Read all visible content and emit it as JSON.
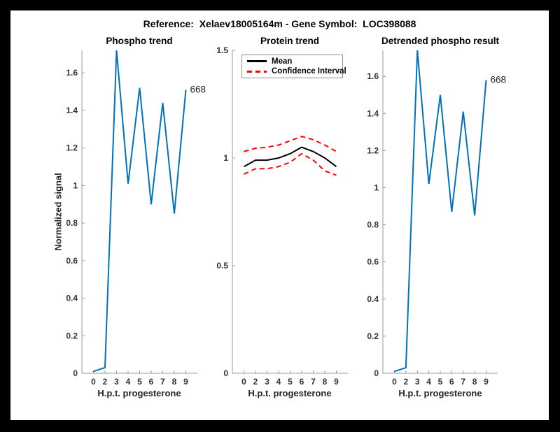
{
  "figure": {
    "title": "Reference:  Xelaev18005164m - Gene Symbol:  LOC398088",
    "background_color": "#ffffff",
    "frame_color": "#000000",
    "accent_blue": "#0072BD"
  },
  "legend": {
    "items": [
      {
        "label": "Mean",
        "color": "#000000",
        "style": "solid"
      },
      {
        "label": "Confidence Interval",
        "color": "#ff0000",
        "style": "dashed"
      }
    ]
  },
  "chart_data": [
    {
      "type": "line",
      "title": "Phospho trend",
      "xlabel": "H.p.t. progesterone",
      "ylabel": "Normalized signal",
      "x_ticklabels": [
        "0",
        "2",
        "3",
        "4",
        "5",
        "6",
        "7",
        "8",
        "9"
      ],
      "yticks": [
        0,
        0.2,
        0.4,
        0.6,
        0.8,
        1,
        1.2,
        1.4,
        1.6
      ],
      "ytick_labels": [
        "0",
        "0.2",
        "0.4",
        "0.6",
        "0.8",
        "1",
        "1.2",
        "1.4",
        "1.6"
      ],
      "ylim": [
        0,
        1.72
      ],
      "grid": false,
      "series": [
        {
          "name": "phospho-signal",
          "color": "#0072BD",
          "style": "solid",
          "values": [
            0.01,
            0.03,
            1.72,
            1.01,
            1.52,
            0.9,
            1.44,
            0.85,
            1.51
          ]
        }
      ],
      "end_label": "668"
    },
    {
      "type": "line",
      "title": "Protein trend",
      "xlabel": "H.p.t. progesterone",
      "x_ticklabels": [
        "0",
        "2",
        "3",
        "4",
        "5",
        "6",
        "7",
        "8",
        "9"
      ],
      "yticks": [
        0,
        0.5,
        1,
        1.5
      ],
      "ytick_labels": [
        "0",
        "0.5",
        "1",
        "1.5"
      ],
      "ylim": [
        0,
        1.5
      ],
      "grid": false,
      "legend_position": "northwest",
      "series": [
        {
          "name": "mean",
          "color": "#000000",
          "style": "solid",
          "values": [
            0.96,
            0.99,
            0.99,
            1.0,
            1.02,
            1.05,
            1.03,
            1.0,
            0.96
          ]
        },
        {
          "name": "confidence-interval-upper",
          "color": "#ff0000",
          "style": "dashed",
          "values": [
            1.03,
            1.045,
            1.05,
            1.06,
            1.08,
            1.1,
            1.085,
            1.06,
            1.03
          ]
        },
        {
          "name": "confidence-interval-lower",
          "color": "#ff0000",
          "style": "dashed",
          "values": [
            0.925,
            0.95,
            0.95,
            0.96,
            0.98,
            1.02,
            0.99,
            0.94,
            0.92
          ]
        }
      ]
    },
    {
      "type": "line",
      "title": "Detrended phospho result",
      "xlabel": "H.p.t. progesterone",
      "x_ticklabels": [
        "0",
        "2",
        "3",
        "4",
        "5",
        "6",
        "7",
        "8",
        "9"
      ],
      "yticks": [
        0,
        0.2,
        0.4,
        0.6,
        0.8,
        1,
        1.2,
        1.4,
        1.6
      ],
      "ytick_labels": [
        "0",
        "0.2",
        "0.4",
        "0.6",
        "0.8",
        "1",
        "1.2",
        "1.4",
        "1.6"
      ],
      "ylim": [
        0,
        1.74
      ],
      "grid": false,
      "series": [
        {
          "name": "detrended-phospho-signal",
          "color": "#0072BD",
          "style": "solid",
          "values": [
            0.01,
            0.03,
            1.74,
            1.02,
            1.5,
            0.87,
            1.41,
            0.85,
            1.58
          ]
        }
      ],
      "end_label": "668"
    }
  ]
}
